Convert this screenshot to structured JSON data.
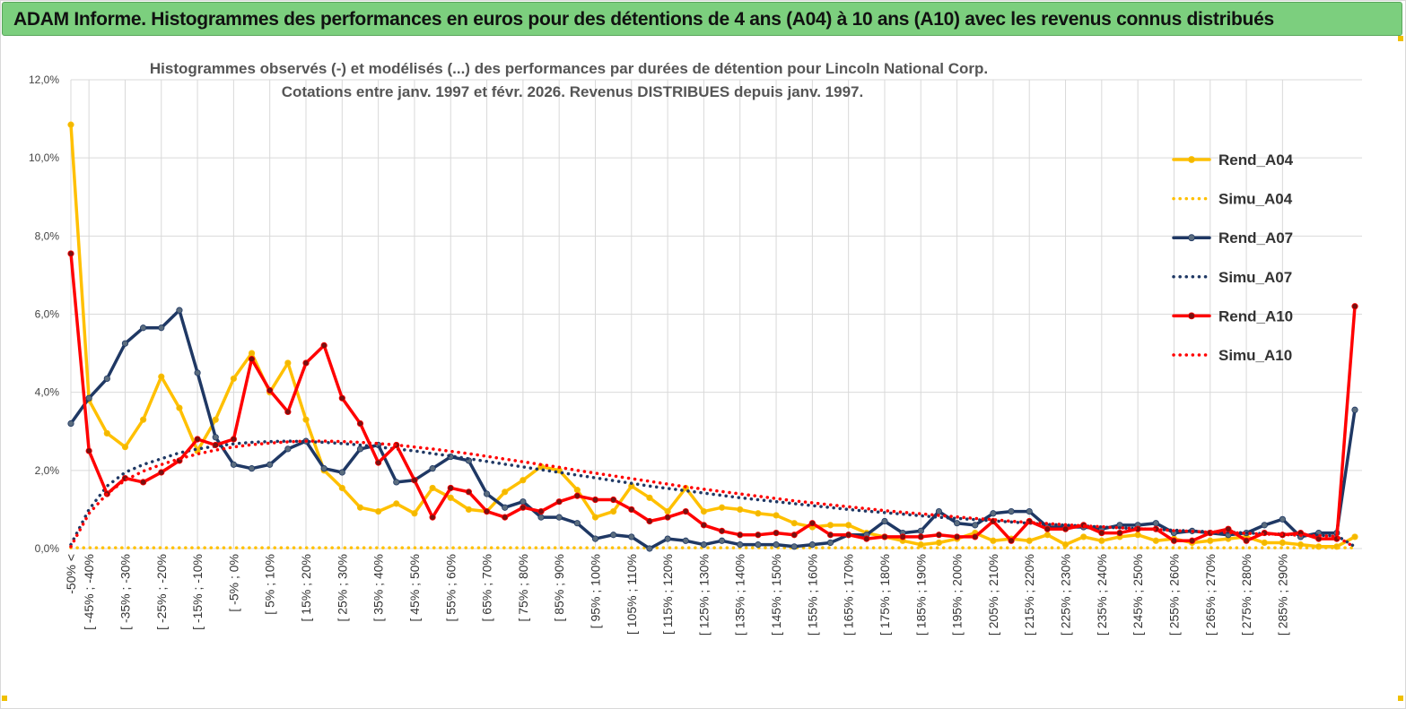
{
  "banner": {
    "title": "ADAM Informe. Histogrammes des performances en euros pour des détentions de 4 ans (A04) à 10 ans (A10) avec les revenus connus distribués"
  },
  "colors": {
    "banner_bg": "#7ccf7e",
    "a04": "#ffc000",
    "a07": "#1f3864",
    "a10": "#ff0000",
    "grid": "#d9d9d9"
  },
  "chart_data": {
    "type": "line",
    "title": "Histogrammes observés (-) et modélisés (...)  des performances par durées de détention pour Lincoln National Corp.",
    "subtitle": "Cotations entre janv. 1997 et févr. 2026. Revenus  DISTRIBUES depuis janv. 1997.",
    "ylim": [
      0,
      12
    ],
    "y_ticks": [
      "0,0%",
      "2,0%",
      "4,0%",
      "6,0%",
      "8,0%",
      "10,0%",
      "12,0%"
    ],
    "y_tick_values": [
      0,
      2,
      4,
      6,
      8,
      10,
      12
    ],
    "grid": true,
    "legend_position": "right",
    "x_tick_labels": [
      "-50% <",
      "[ -45% ; -40%",
      "[ -35% ; -30%",
      "[ -25% ; -20%",
      "[ -15% ; -10%",
      "[ -5% ; 0%",
      "[ 5% ; 10%",
      "[ 15% ; 20%",
      "[ 25% ; 30%",
      "[ 35% ; 40%",
      "[ 45% ; 50%",
      "[ 55% ; 60%",
      "[ 65% ; 70%",
      "[ 75% ; 80%",
      "[ 85% ; 90%",
      "[ 95% ; 100%",
      "[ 105% ; 110%",
      "[ 115% ; 120%",
      "[ 125% ; 130%",
      "[ 135% ; 140%",
      "[ 145% ; 150%",
      "[ 155% ; 160%",
      "[ 165% ; 170%",
      "[ 175% ; 180%",
      "[ 185% ; 190%",
      "[ 195% ; 200%",
      "[ 205% ; 210%",
      "[ 215% ; 220%",
      "[ 225% ; 230%",
      "[ 235% ; 240%",
      "[ 245% ; 250%",
      "[ 255% ; 260%",
      "[ 265% ; 270%",
      "[ 275% ; 280%",
      "[ 285% ; 290%"
    ],
    "series": [
      {
        "name": "Rend_A04",
        "style": "solid",
        "color": "#ffc000",
        "values": [
          10.85,
          3.8,
          2.95,
          2.6,
          3.3,
          4.4,
          3.6,
          2.5,
          3.3,
          4.35,
          5.0,
          4.0,
          4.75,
          3.3,
          2.0,
          1.55,
          1.05,
          0.95,
          1.15,
          0.9,
          1.55,
          1.3,
          1.0,
          0.95,
          1.45,
          1.75,
          2.1,
          2.0,
          1.5,
          0.8,
          0.95,
          1.6,
          1.3,
          0.95,
          1.55,
          0.95,
          1.05,
          1.0,
          0.9,
          0.85,
          0.65,
          0.55,
          0.6,
          0.6,
          0.4,
          0.3,
          0.2,
          0.1,
          0.15,
          0.25,
          0.4,
          0.2,
          0.25,
          0.2,
          0.35,
          0.1,
          0.3,
          0.2,
          0.3,
          0.35,
          0.2,
          0.25,
          0.15,
          0.2,
          0.25,
          0.3,
          0.15,
          0.15,
          0.1,
          0.05,
          0.05,
          0.3
        ]
      },
      {
        "name": "Simu_A04",
        "style": "dotted",
        "color": "#ffc000",
        "values": [
          0.02,
          0.02,
          0.02,
          0.02,
          0.02,
          0.02,
          0.02,
          0.02,
          0.02,
          0.02,
          0.02,
          0.02,
          0.02,
          0.02,
          0.02,
          0.02,
          0.02,
          0.02,
          0.02,
          0.02,
          0.02,
          0.02,
          0.02,
          0.02,
          0.02,
          0.02,
          0.02,
          0.02,
          0.02,
          0.02,
          0.02,
          0.02,
          0.02,
          0.02,
          0.02,
          0.02,
          0.02,
          0.02,
          0.02,
          0.02,
          0.02,
          0.02,
          0.02,
          0.02,
          0.02,
          0.02,
          0.02,
          0.02,
          0.02,
          0.02,
          0.02,
          0.02,
          0.02,
          0.02,
          0.02,
          0.02,
          0.02,
          0.02,
          0.02,
          0.02,
          0.02,
          0.02,
          0.02,
          0.02,
          0.02,
          0.02,
          0.02,
          0.02,
          0.02,
          0.02,
          0.02,
          0.02
        ]
      },
      {
        "name": "Rend_A07",
        "style": "solid",
        "color": "#1f3864",
        "values": [
          3.2,
          3.85,
          4.35,
          5.25,
          5.65,
          5.65,
          6.1,
          4.5,
          2.85,
          2.15,
          2.05,
          2.15,
          2.55,
          2.75,
          2.05,
          1.95,
          2.55,
          2.65,
          1.7,
          1.75,
          2.05,
          2.35,
          2.25,
          1.4,
          1.05,
          1.2,
          0.8,
          0.8,
          0.65,
          0.25,
          0.35,
          0.3,
          0.0,
          0.25,
          0.2,
          0.1,
          0.2,
          0.1,
          0.1,
          0.1,
          0.05,
          0.1,
          0.15,
          0.35,
          0.35,
          0.7,
          0.4,
          0.45,
          0.95,
          0.65,
          0.6,
          0.9,
          0.95,
          0.95,
          0.55,
          0.55,
          0.55,
          0.5,
          0.6,
          0.6,
          0.65,
          0.4,
          0.45,
          0.4,
          0.35,
          0.4,
          0.6,
          0.75,
          0.3,
          0.4,
          0.4,
          3.55
        ]
      },
      {
        "name": "Simu_A07",
        "style": "dotted",
        "color": "#1f3864",
        "values": [
          0.1,
          1.0,
          1.6,
          1.95,
          2.15,
          2.3,
          2.45,
          2.55,
          2.62,
          2.68,
          2.72,
          2.74,
          2.75,
          2.74,
          2.72,
          2.69,
          2.65,
          2.6,
          2.55,
          2.5,
          2.43,
          2.37,
          2.3,
          2.23,
          2.16,
          2.09,
          2.02,
          1.95,
          1.88,
          1.81,
          1.74,
          1.67,
          1.6,
          1.54,
          1.48,
          1.42,
          1.36,
          1.3,
          1.25,
          1.2,
          1.15,
          1.1,
          1.05,
          1.0,
          0.96,
          0.92,
          0.88,
          0.84,
          0.8,
          0.77,
          0.74,
          0.71,
          0.68,
          0.65,
          0.62,
          0.6,
          0.58,
          0.55,
          0.53,
          0.51,
          0.49,
          0.47,
          0.45,
          0.43,
          0.42,
          0.4,
          0.38,
          0.37,
          0.35,
          0.34,
          0.33,
          0.05
        ]
      },
      {
        "name": "Rend_A10",
        "style": "solid",
        "color": "#ff0000",
        "values": [
          7.55,
          2.5,
          1.4,
          1.8,
          1.7,
          1.95,
          2.25,
          2.8,
          2.65,
          2.8,
          4.85,
          4.05,
          3.5,
          4.75,
          5.2,
          3.85,
          3.2,
          2.2,
          2.65,
          1.75,
          0.8,
          1.55,
          1.45,
          0.95,
          0.8,
          1.05,
          0.95,
          1.2,
          1.35,
          1.25,
          1.25,
          1.0,
          0.7,
          0.8,
          0.95,
          0.6,
          0.45,
          0.35,
          0.35,
          0.4,
          0.35,
          0.65,
          0.35,
          0.35,
          0.25,
          0.3,
          0.3,
          0.3,
          0.35,
          0.3,
          0.3,
          0.7,
          0.2,
          0.7,
          0.5,
          0.5,
          0.6,
          0.4,
          0.4,
          0.5,
          0.5,
          0.2,
          0.2,
          0.4,
          0.5,
          0.2,
          0.4,
          0.35,
          0.4,
          0.25,
          0.25,
          6.2
        ]
      },
      {
        "name": "Simu_A10",
        "style": "dotted",
        "color": "#ff0000",
        "values": [
          0.05,
          0.9,
          1.4,
          1.75,
          1.98,
          2.15,
          2.3,
          2.42,
          2.52,
          2.6,
          2.66,
          2.7,
          2.73,
          2.75,
          2.75,
          2.74,
          2.72,
          2.69,
          2.65,
          2.6,
          2.55,
          2.49,
          2.43,
          2.36,
          2.29,
          2.22,
          2.15,
          2.08,
          2.0,
          1.93,
          1.86,
          1.79,
          1.72,
          1.65,
          1.58,
          1.52,
          1.46,
          1.4,
          1.34,
          1.28,
          1.22,
          1.17,
          1.12,
          1.07,
          1.02,
          0.97,
          0.93,
          0.89,
          0.85,
          0.81,
          0.77,
          0.74,
          0.7,
          0.67,
          0.64,
          0.61,
          0.58,
          0.56,
          0.53,
          0.51,
          0.49,
          0.46,
          0.44,
          0.42,
          0.41,
          0.39,
          0.37,
          0.36,
          0.34,
          0.33,
          0.31,
          0.03
        ]
      }
    ]
  }
}
